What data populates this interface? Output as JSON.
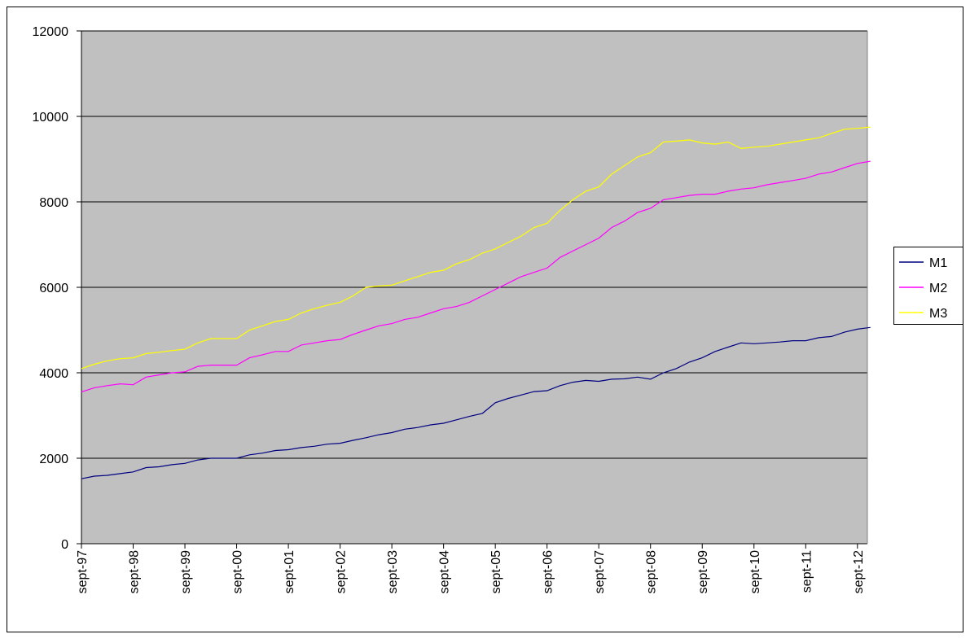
{
  "chart_data": {
    "type": "line",
    "categories": [
      "sept-97",
      null,
      null,
      null,
      "sept-98",
      null,
      null,
      null,
      "sept-99",
      null,
      null,
      null,
      "sept-00",
      null,
      null,
      null,
      "sept-01",
      null,
      null,
      null,
      "sept-02",
      null,
      null,
      null,
      "sept-03",
      null,
      null,
      null,
      "sept-04",
      null,
      null,
      null,
      "sept-05",
      null,
      null,
      null,
      "sept-06",
      null,
      null,
      null,
      "sept-07",
      null,
      null,
      null,
      "sept-08",
      null,
      null,
      null,
      "sept-09",
      null,
      null,
      null,
      "sept-10",
      null,
      null,
      null,
      "sept-11",
      null,
      null,
      null,
      "sept-12",
      null
    ],
    "series": [
      {
        "name": "M1",
        "color": "#000080",
        "values": [
          1520,
          1580,
          1600,
          1640,
          1680,
          1780,
          1800,
          1850,
          1880,
          1960,
          2000,
          2000,
          2000,
          2080,
          2120,
          2180,
          2200,
          2250,
          2280,
          2330,
          2350,
          2420,
          2480,
          2550,
          2600,
          2680,
          2720,
          2780,
          2820,
          2900,
          2980,
          3050,
          3300,
          3400,
          3480,
          3560,
          3580,
          3700,
          3780,
          3820,
          3800,
          3850,
          3860,
          3900,
          3850,
          4000,
          4100,
          4250,
          4350,
          4500,
          4600,
          4700,
          4680,
          4700,
          4720,
          4750,
          4750,
          4820,
          4850,
          4950,
          5020,
          5060
        ]
      },
      {
        "name": "M2",
        "color": "#ff00ff",
        "values": [
          3550,
          3650,
          3700,
          3740,
          3720,
          3900,
          3950,
          4000,
          4020,
          4150,
          4180,
          4180,
          4180,
          4350,
          4420,
          4500,
          4500,
          4650,
          4700,
          4750,
          4780,
          4900,
          5000,
          5100,
          5150,
          5250,
          5300,
          5400,
          5500,
          5550,
          5650,
          5800,
          5950,
          6100,
          6250,
          6350,
          6450,
          6700,
          6850,
          7000,
          7150,
          7400,
          7550,
          7750,
          7850,
          8050,
          8100,
          8150,
          8180,
          8180,
          8250,
          8300,
          8330,
          8400,
          8450,
          8500,
          8550,
          8650,
          8700,
          8800,
          8900,
          8950
        ]
      },
      {
        "name": "M3",
        "color": "#ffff00",
        "values": [
          4100,
          4200,
          4280,
          4330,
          4350,
          4450,
          4480,
          4520,
          4550,
          4700,
          4800,
          4800,
          4800,
          5000,
          5100,
          5200,
          5250,
          5400,
          5500,
          5580,
          5650,
          5800,
          6000,
          6030,
          6050,
          6150,
          6250,
          6350,
          6400,
          6550,
          6650,
          6800,
          6900,
          7050,
          7200,
          7400,
          7500,
          7800,
          8050,
          8250,
          8350,
          8650,
          8850,
          9050,
          9150,
          9400,
          9420,
          9450,
          9380,
          9350,
          9400,
          9250,
          9280,
          9300,
          9350,
          9400,
          9450,
          9500,
          9600,
          9700,
          9720,
          9750
        ]
      }
    ],
    "ylim": [
      0,
      12000
    ],
    "yticks": [
      0,
      2000,
      4000,
      6000,
      8000,
      10000,
      12000
    ],
    "grid": true,
    "legend": "right"
  }
}
